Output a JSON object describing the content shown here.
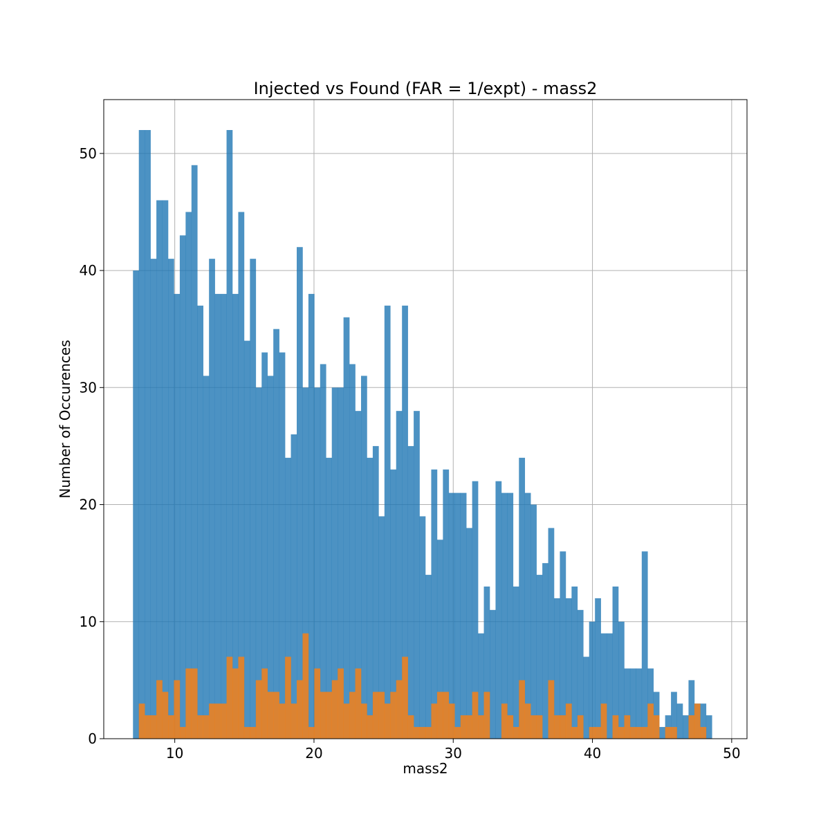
{
  "chart_data": {
    "type": "bar",
    "title": "Injected vs Found (FAR = 1/expt) - mass2",
    "xlabel": "mass2",
    "ylabel": "Number of Occurences",
    "xlim": [
      4.9,
      51.1
    ],
    "ylim": [
      0,
      54.6
    ],
    "xticks": [
      10,
      20,
      30,
      40,
      50
    ],
    "yticks": [
      0,
      10,
      20,
      30,
      40,
      50
    ],
    "grid": true,
    "bins": {
      "start": 7.0,
      "width": 0.42
    },
    "series": [
      {
        "color": "#1f77b4",
        "opacity": 0.8,
        "values": [
          40,
          52,
          52,
          41,
          46,
          46,
          41,
          38,
          43,
          45,
          49,
          37,
          31,
          41,
          38,
          38,
          52,
          38,
          45,
          34,
          41,
          30,
          33,
          31,
          35,
          33,
          24,
          26,
          42,
          30,
          38,
          30,
          32,
          24,
          30,
          30,
          36,
          32,
          28,
          31,
          24,
          25,
          19,
          37,
          23,
          28,
          37,
          25,
          28,
          19,
          14,
          23,
          17,
          23,
          21,
          21,
          21,
          18,
          22,
          9,
          13,
          11,
          22,
          21,
          21,
          13,
          24,
          21,
          20,
          14,
          15,
          18,
          12,
          16,
          12,
          13,
          11,
          7,
          10,
          12,
          9,
          9,
          13,
          10,
          6,
          6,
          6,
          16,
          6,
          4,
          1,
          2,
          4,
          3,
          2,
          5,
          3,
          3,
          2
        ]
      },
      {
        "color": "#ff7f0e",
        "opacity": 0.8,
        "values": [
          0,
          3,
          2,
          2,
          5,
          4,
          2,
          5,
          1,
          6,
          6,
          2,
          2,
          3,
          3,
          3,
          7,
          6,
          7,
          1,
          1,
          5,
          6,
          4,
          4,
          3,
          7,
          3,
          5,
          9,
          1,
          6,
          4,
          4,
          5,
          6,
          3,
          4,
          6,
          3,
          2,
          4,
          4,
          3,
          4,
          5,
          7,
          2,
          1,
          1,
          1,
          3,
          4,
          4,
          3,
          1,
          2,
          2,
          4,
          2,
          4,
          0,
          0,
          3,
          2,
          1,
          5,
          3,
          2,
          2,
          0,
          5,
          2,
          2,
          3,
          1,
          2,
          0,
          1,
          1,
          3,
          0,
          2,
          1,
          2,
          1,
          1,
          1,
          3,
          2,
          0,
          1,
          1,
          0,
          0,
          2,
          3,
          1,
          0
        ]
      }
    ]
  }
}
